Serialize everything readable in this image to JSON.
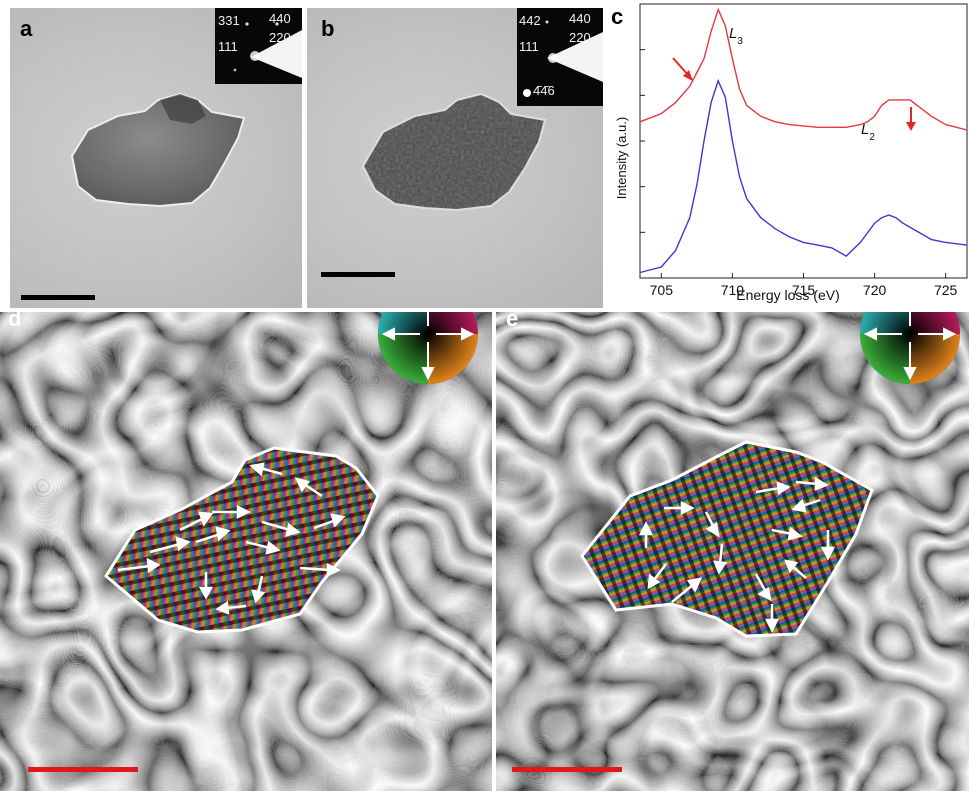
{
  "panels": {
    "a": {
      "label": "a",
      "diffraction": [
        "331",
        "440",
        "220",
        "111"
      ]
    },
    "b": {
      "label": "b",
      "diffraction": [
        "442",
        "440",
        "220",
        "111",
        "4̄4̄6"
      ]
    },
    "c": {
      "label": "c"
    },
    "d": {
      "label": "d"
    },
    "e": {
      "label": "e"
    }
  },
  "colors": {
    "top_spectrum": "#e8383f",
    "bottom_spectrum": "#3a3ad0",
    "scalebar_tem": "#000000",
    "scalebar_holo": "#e01818",
    "arrow_annotation": "#e02828"
  },
  "chart_data": {
    "type": "line",
    "xlabel": "Energy loss (eV)",
    "ylabel": "Intensity (a.u.)",
    "xlim": [
      703.5,
      726.5
    ],
    "ylim": [
      0,
      1
    ],
    "xticks": [
      705,
      710,
      715,
      720,
      725
    ],
    "annotations": [
      "L3",
      "L2"
    ],
    "series": [
      {
        "x": [
          703.5,
          705,
          706,
          707,
          707.5,
          708,
          708.5,
          709,
          709.5,
          710,
          710.5,
          711,
          712,
          713,
          714,
          716,
          718,
          719,
          719.5,
          720,
          720.5,
          721,
          721.5,
          722,
          722.5,
          723,
          724,
          725,
          726.5
        ],
        "y": [
          0.57,
          0.6,
          0.64,
          0.7,
          0.75,
          0.8,
          0.9,
          0.98,
          0.92,
          0.8,
          0.69,
          0.63,
          0.59,
          0.57,
          0.56,
          0.55,
          0.55,
          0.56,
          0.57,
          0.59,
          0.63,
          0.65,
          0.65,
          0.65,
          0.65,
          0.63,
          0.59,
          0.56,
          0.54
        ]
      },
      {
        "x": [
          703.5,
          705,
          706,
          707,
          707.5,
          708,
          708.5,
          709,
          709.5,
          710,
          710.5,
          711,
          712,
          713,
          714,
          715,
          716,
          717,
          718,
          719,
          720,
          720.5,
          721,
          721.5,
          722,
          723,
          724,
          725,
          726.5
        ],
        "y": [
          0.02,
          0.04,
          0.1,
          0.22,
          0.34,
          0.5,
          0.64,
          0.72,
          0.66,
          0.5,
          0.37,
          0.29,
          0.22,
          0.18,
          0.15,
          0.13,
          0.12,
          0.11,
          0.08,
          0.13,
          0.2,
          0.22,
          0.23,
          0.22,
          0.2,
          0.17,
          0.14,
          0.13,
          0.12
        ]
      }
    ]
  }
}
